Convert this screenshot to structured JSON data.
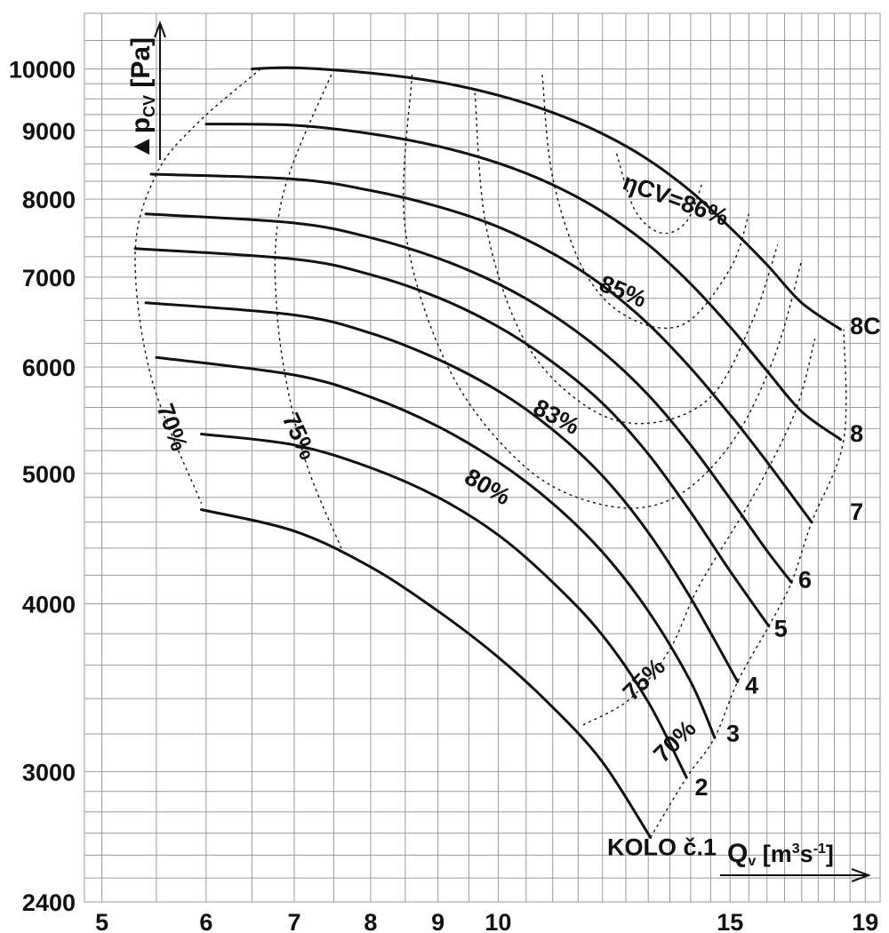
{
  "chart_data": {
    "type": "line",
    "title": "",
    "xlabel": {
      "main": "Q",
      "sub": "v",
      "unit_open": " [m",
      "sup1": "3",
      "mid": "s",
      "sup2": "-1",
      "unit_close": "]"
    },
    "ylabel": {
      "main": "▲p",
      "sub": "CV",
      "unit": " [Pa]"
    },
    "x_scale": "log",
    "y_scale": "log",
    "xlim": [
      4.85,
      19.5
    ],
    "ylim": [
      2400,
      11000
    ],
    "grid": true,
    "x_ticks": [
      5,
      6,
      7,
      8,
      9,
      10,
      15,
      19
    ],
    "x_tick_labels": [
      "5",
      "6",
      "7",
      "8",
      "9",
      "10",
      "15",
      "19"
    ],
    "y_ticks": [
      2400,
      3000,
      4000,
      5000,
      6000,
      7000,
      8000,
      9000,
      10000
    ],
    "y_tick_labels": [
      "2400",
      "3000",
      "4000",
      "5000",
      "6000",
      "7000",
      "8000",
      "9000",
      "10000"
    ],
    "series": [
      {
        "name": "KOLO č.1",
        "points": [
          [
            5.95,
            4700
          ],
          [
            7.0,
            4530
          ],
          [
            8.0,
            4260
          ],
          [
            9.0,
            3950
          ],
          [
            10.0,
            3650
          ],
          [
            11.0,
            3350
          ],
          [
            12.0,
            3050
          ],
          [
            13.05,
            2680
          ]
        ]
      },
      {
        "name": "2",
        "points": [
          [
            5.95,
            5350
          ],
          [
            7.0,
            5250
          ],
          [
            8.0,
            5050
          ],
          [
            9.0,
            4800
          ],
          [
            10.0,
            4500
          ],
          [
            11.0,
            4150
          ],
          [
            12.0,
            3790
          ],
          [
            13.0,
            3380
          ],
          [
            13.9,
            2970
          ]
        ]
      },
      {
        "name": "3",
        "points": [
          [
            5.5,
            6100
          ],
          [
            7.0,
            5920
          ],
          [
            8.0,
            5700
          ],
          [
            9.0,
            5420
          ],
          [
            10.0,
            5100
          ],
          [
            11.0,
            4750
          ],
          [
            12.0,
            4370
          ],
          [
            13.0,
            3950
          ],
          [
            14.0,
            3500
          ],
          [
            14.6,
            3180
          ]
        ]
      },
      {
        "name": "4",
        "points": [
          [
            5.4,
            6700
          ],
          [
            7.0,
            6560
          ],
          [
            8.0,
            6360
          ],
          [
            9.0,
            6080
          ],
          [
            10.0,
            5760
          ],
          [
            11.0,
            5390
          ],
          [
            12.0,
            4980
          ],
          [
            13.0,
            4520
          ],
          [
            14.0,
            4040
          ],
          [
            15.2,
            3500
          ]
        ]
      },
      {
        "name": "5",
        "points": [
          [
            5.3,
            7350
          ],
          [
            7.0,
            7220
          ],
          [
            8.0,
            7030
          ],
          [
            9.0,
            6760
          ],
          [
            10.0,
            6430
          ],
          [
            11.0,
            6050
          ],
          [
            12.0,
            5640
          ],
          [
            13.0,
            5170
          ],
          [
            14.0,
            4680
          ],
          [
            15.0,
            4230
          ],
          [
            16.05,
            3850
          ]
        ]
      },
      {
        "name": "6",
        "points": [
          [
            5.4,
            7800
          ],
          [
            7.0,
            7680
          ],
          [
            8.0,
            7490
          ],
          [
            9.0,
            7230
          ],
          [
            10.0,
            6920
          ],
          [
            11.0,
            6560
          ],
          [
            12.0,
            6160
          ],
          [
            13.0,
            5720
          ],
          [
            14.0,
            5250
          ],
          [
            15.0,
            4790
          ],
          [
            16.0,
            4380
          ],
          [
            16.7,
            4150
          ]
        ]
      },
      {
        "name": "7",
        "points": [
          [
            5.45,
            8350
          ],
          [
            7.0,
            8280
          ],
          [
            8.0,
            8120
          ],
          [
            9.0,
            7900
          ],
          [
            10.0,
            7630
          ],
          [
            11.0,
            7290
          ],
          [
            12.0,
            6900
          ],
          [
            13.0,
            6460
          ],
          [
            14.0,
            5990
          ],
          [
            15.0,
            5530
          ],
          [
            16.0,
            5100
          ],
          [
            17.3,
            4600
          ]
        ]
      },
      {
        "name": "8",
        "points": [
          [
            6.0,
            9100
          ],
          [
            7.0,
            9080
          ],
          [
            8.0,
            8950
          ],
          [
            9.0,
            8760
          ],
          [
            10.0,
            8510
          ],
          [
            11.0,
            8200
          ],
          [
            12.0,
            7830
          ],
          [
            13.0,
            7400
          ],
          [
            14.0,
            6920
          ],
          [
            15.0,
            6430
          ],
          [
            16.0,
            5960
          ],
          [
            17.0,
            5560
          ],
          [
            18.2,
            5300
          ]
        ]
      },
      {
        "name": "8C",
        "points": [
          [
            6.5,
            10000
          ],
          [
            7.0,
            10020
          ],
          [
            8.0,
            9930
          ],
          [
            9.0,
            9780
          ],
          [
            10.0,
            9560
          ],
          [
            11.0,
            9280
          ],
          [
            12.0,
            8950
          ],
          [
            13.0,
            8560
          ],
          [
            14.0,
            8110
          ],
          [
            15.0,
            7620
          ],
          [
            16.0,
            7150
          ],
          [
            17.0,
            6700
          ],
          [
            18.2,
            6400
          ]
        ]
      }
    ],
    "efficiency_contours": [
      {
        "label": "ηCV=86%",
        "points": [
          [
            12.3,
            8650
          ],
          [
            12.7,
            7850
          ],
          [
            13.3,
            7550
          ],
          [
            13.9,
            7700
          ],
          [
            14.3,
            8250
          ]
        ]
      },
      {
        "label": "85%",
        "points": [
          [
            10.8,
            9900
          ],
          [
            11.0,
            8300
          ],
          [
            11.6,
            7100
          ],
          [
            12.5,
            6550
          ],
          [
            13.8,
            6450
          ],
          [
            15.0,
            7100
          ],
          [
            15.5,
            7800
          ]
        ]
      },
      {
        "label": "83%",
        "points": [
          [
            9.6,
            9600
          ],
          [
            9.8,
            7600
          ],
          [
            10.5,
            6250
          ],
          [
            11.7,
            5600
          ],
          [
            13.0,
            5450
          ],
          [
            14.5,
            5700
          ],
          [
            15.6,
            6500
          ],
          [
            16.3,
            7400
          ]
        ]
      },
      {
        "label": "80%",
        "points": [
          [
            8.6,
            9900
          ],
          [
            8.5,
            7600
          ],
          [
            9.2,
            5950
          ],
          [
            10.5,
            5050
          ],
          [
            12.0,
            4740
          ],
          [
            13.5,
            4780
          ],
          [
            15.0,
            5250
          ],
          [
            16.2,
            6100
          ],
          [
            17.0,
            7200
          ]
        ]
      },
      {
        "label": "75%",
        "points": [
          [
            7.5,
            10000
          ],
          [
            6.85,
            8000
          ],
          [
            6.8,
            6500
          ],
          [
            7.1,
            5200
          ],
          [
            7.6,
            4400
          ]
        ]
      },
      {
        "label": "70%",
        "points": [
          [
            6.6,
            10000
          ],
          [
            5.9,
            9100
          ],
          [
            5.5,
            8350
          ],
          [
            5.3,
            7300
          ],
          [
            5.45,
            5900
          ],
          [
            5.95,
            4750
          ]
        ]
      },
      {
        "label": "75%",
        "points": [
          [
            11.6,
            3250
          ],
          [
            12.6,
            3400
          ],
          [
            13.5,
            3700
          ],
          [
            14.2,
            4120
          ],
          [
            15.6,
            4800
          ],
          [
            16.8,
            5550
          ],
          [
            17.4,
            6300
          ]
        ]
      },
      {
        "label": "70%",
        "points": [
          [
            13.05,
            2680
          ],
          [
            13.9,
            2970
          ],
          [
            14.6,
            3180
          ],
          [
            15.2,
            3500
          ],
          [
            16.05,
            3850
          ],
          [
            16.7,
            4150
          ],
          [
            17.3,
            4600
          ],
          [
            18.3,
            5300
          ],
          [
            18.3,
            6400
          ]
        ]
      }
    ],
    "annotations": [
      {
        "text": "KOLO č.1",
        "x": 12.1,
        "y": 2600
      },
      {
        "text": "2",
        "x": 14.1,
        "y": 2880
      },
      {
        "text": "3",
        "x": 14.9,
        "y": 3160
      },
      {
        "text": "4",
        "x": 15.4,
        "y": 3430
      },
      {
        "text": "5",
        "x": 16.2,
        "y": 3780
      },
      {
        "text": "6",
        "x": 16.9,
        "y": 4110
      },
      {
        "text": "7",
        "x": 18.5,
        "y": 4620
      },
      {
        "text": "8",
        "x": 18.5,
        "y": 5280
      },
      {
        "text": "8C",
        "x": 18.5,
        "y": 6350
      },
      {
        "text": "ηCV=86%",
        "x": 12.4,
        "y": 8150,
        "rotate": 20
      },
      {
        "text": "85%",
        "x": 11.9,
        "y": 6850,
        "rotate": 22
      },
      {
        "text": "83%",
        "x": 10.6,
        "y": 5550,
        "rotate": 28
      },
      {
        "text": "80%",
        "x": 9.4,
        "y": 4930,
        "rotate": 30
      },
      {
        "text": "75%",
        "x": 6.85,
        "y": 5500,
        "rotate": 65
      },
      {
        "text": "70%",
        "x": 5.5,
        "y": 5600,
        "rotate": 70
      },
      {
        "text": "75%",
        "x": 12.65,
        "y": 3380,
        "rotate": -45
      },
      {
        "text": "70%",
        "x": 13.35,
        "y": 3040,
        "rotate": -45
      }
    ]
  }
}
